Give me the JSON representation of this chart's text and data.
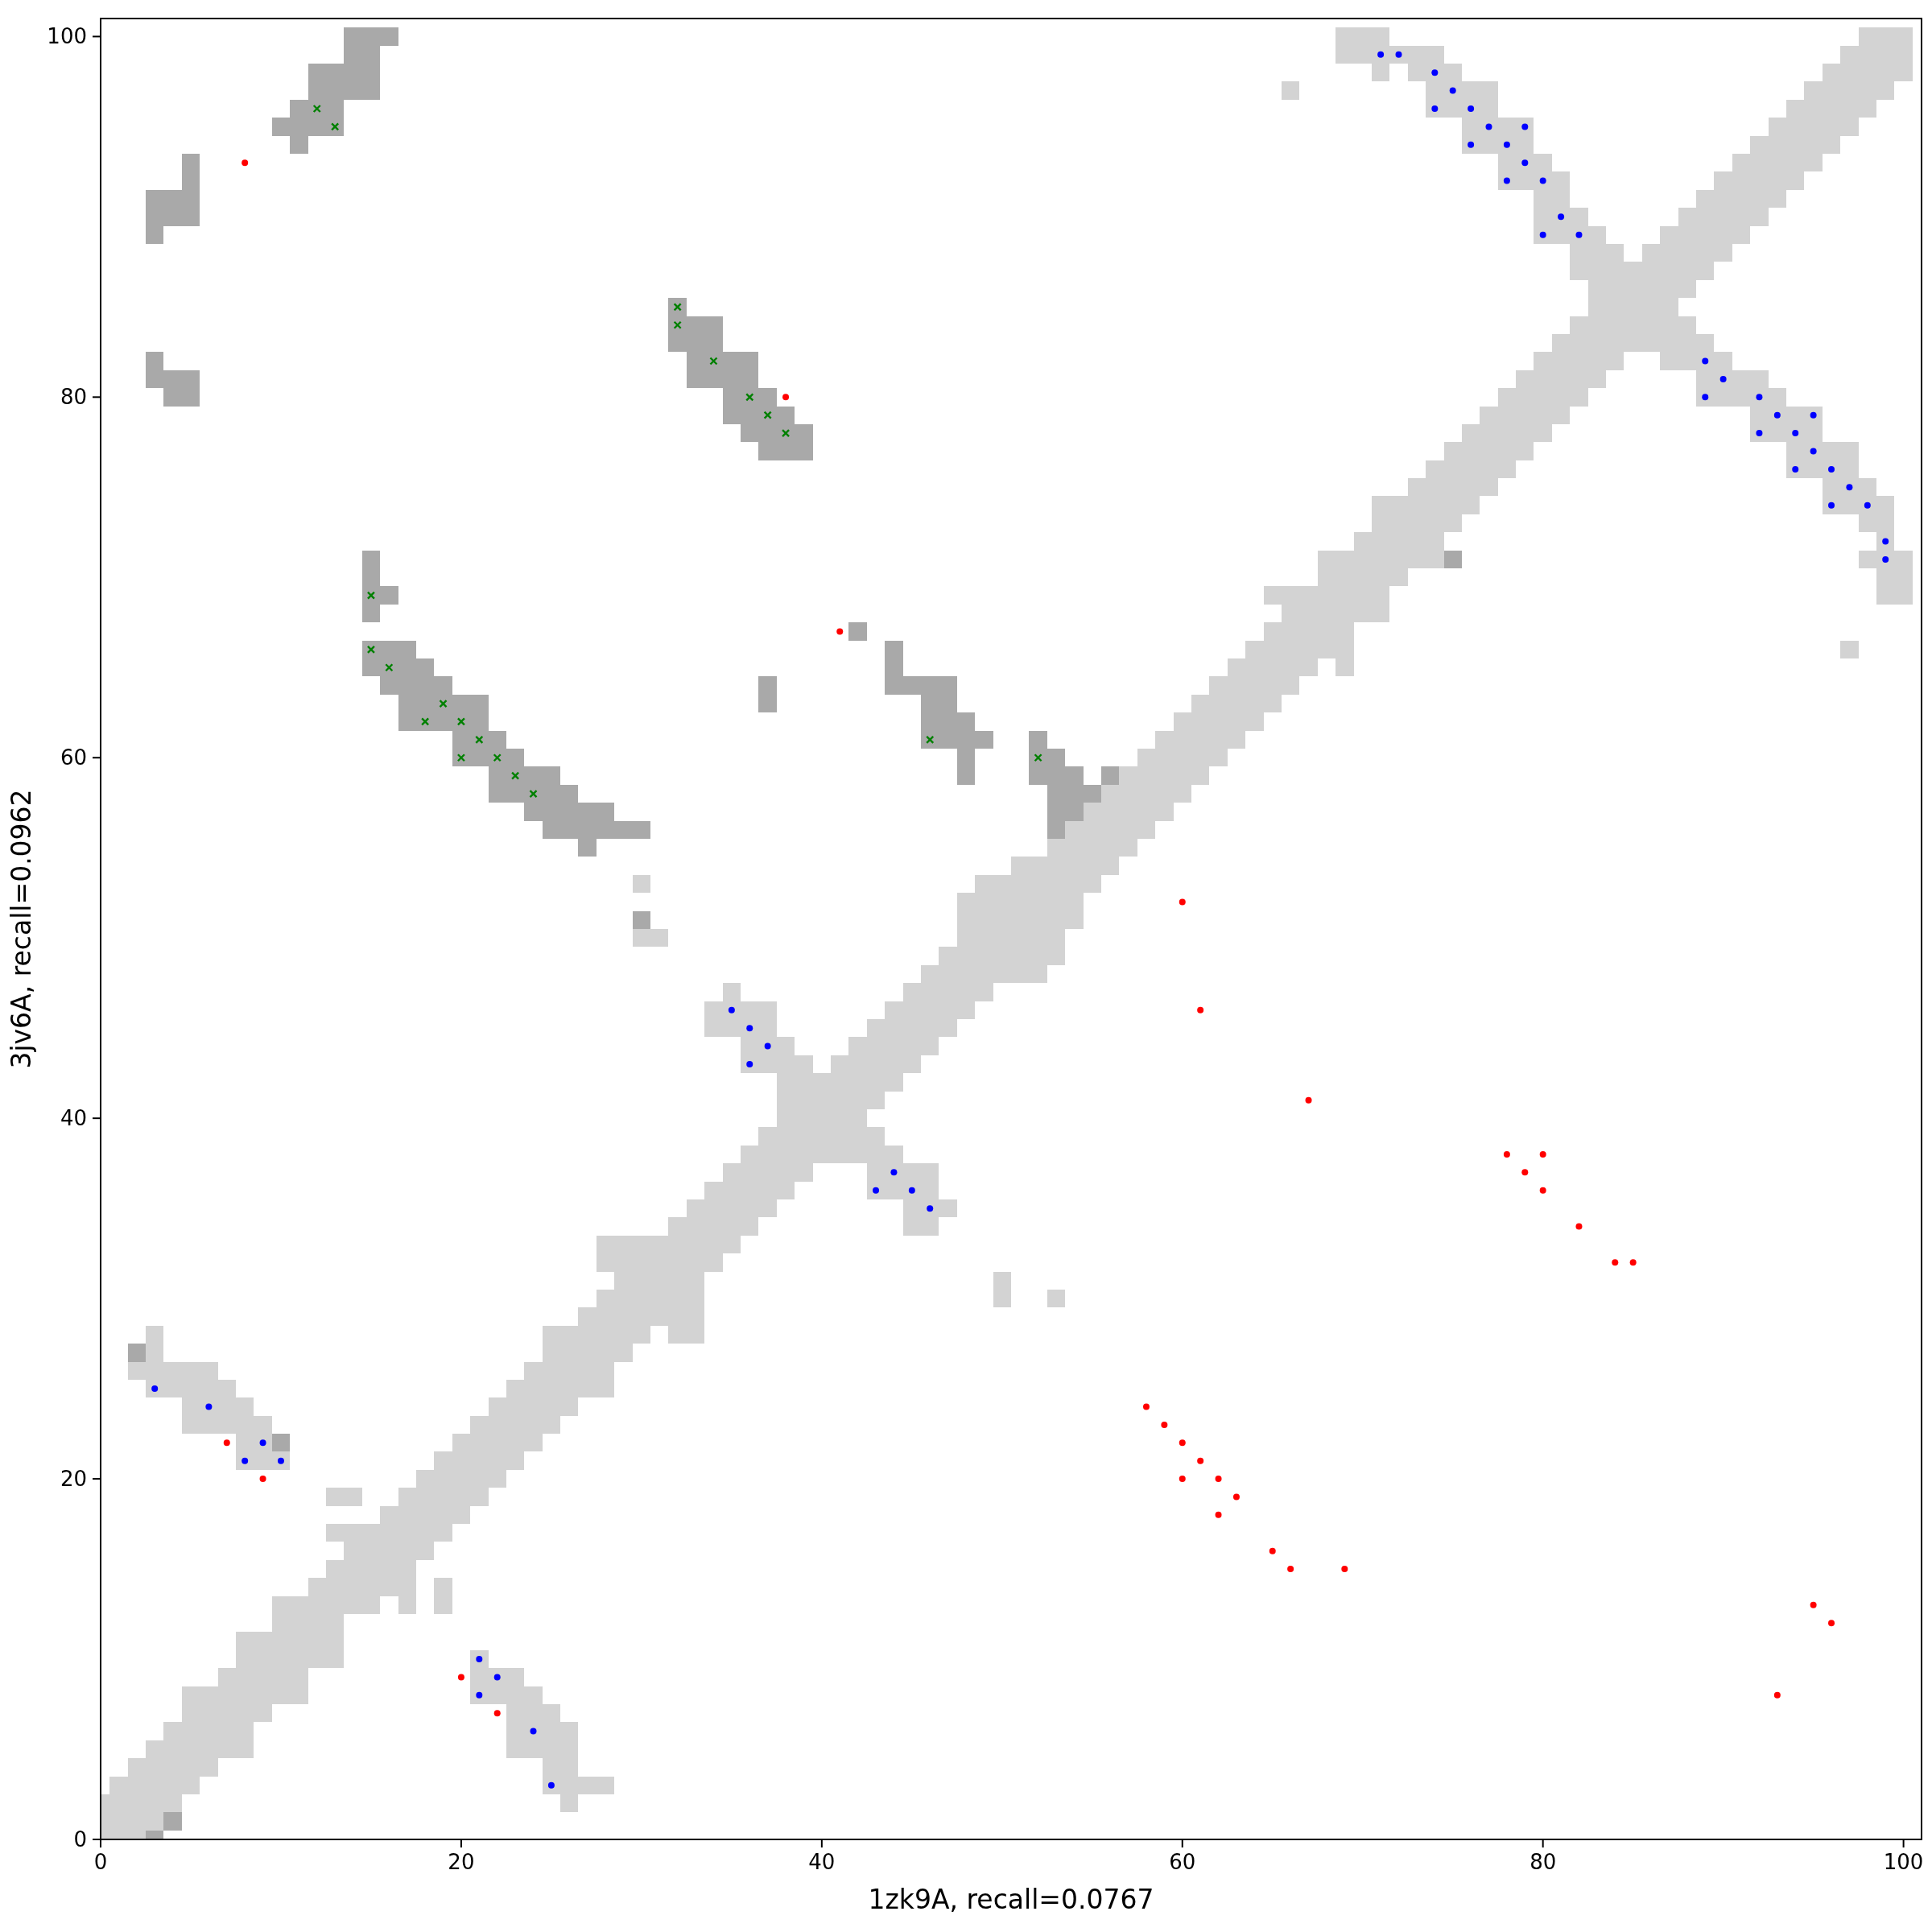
{
  "chart_data": {
    "type": "bar",
    "xlabel": "1zk9A, recall=0.0767",
    "ylabel": "3jv6A, recall=0.0962",
    "xlim": [
      0,
      101
    ],
    "ylim": [
      0,
      101
    ],
    "xticks": [
      0,
      20,
      40,
      60,
      80,
      100
    ],
    "yticks": [
      0,
      20,
      40,
      60,
      80,
      100
    ],
    "series": [
      {
        "color": "#d3d3d3",
        "x": [
          0,
          1,
          2,
          3,
          4,
          5,
          6,
          7,
          8,
          9,
          10,
          11,
          12,
          13,
          14,
          15,
          16,
          17,
          18,
          19,
          20,
          21,
          22,
          23,
          24,
          25,
          26,
          27,
          28,
          29,
          30,
          31,
          32,
          33,
          34,
          35,
          36,
          37,
          38,
          39,
          40,
          41,
          42,
          43,
          44,
          45,
          46,
          47,
          48,
          49,
          50,
          51,
          52,
          53,
          54,
          55,
          56,
          57,
          58,
          59,
          60,
          61,
          62,
          63,
          64,
          65,
          66,
          67,
          68,
          69,
          70,
          71,
          72,
          73,
          74,
          75,
          76,
          77,
          78,
          79,
          80,
          81,
          82,
          83,
          84,
          85,
          86,
          87,
          88,
          89,
          90,
          91,
          92,
          93,
          94,
          95,
          96,
          97,
          98,
          99,
          100
        ],
        "base": [
          0,
          0,
          0,
          0.5,
          1.5,
          2.5,
          3.5,
          4.5,
          4.5,
          6.5,
          7.5,
          7.5,
          9.5,
          9.5,
          12.5,
          12.5,
          13.5,
          12.5,
          15.5,
          12.5,
          17.5,
          7.5,
          7.5,
          4.5,
          4.5,
          2.5,
          1.5,
          2.5,
          2.5,
          26.5,
          27.5,
          28.5,
          27.5,
          27.5,
          31.5,
          32.5,
          33.5,
          34.5,
          35.5,
          36.5,
          37.5,
          37.5,
          37.5,
          35.5,
          35.5,
          33.5,
          33.5,
          34.5,
          45.5,
          46.5,
          29.5,
          47.5,
          47.5,
          29.5,
          50.5,
          52.5,
          53.5,
          54.5,
          55.5,
          56.5,
          57.5,
          58.5,
          59.5,
          60.5,
          61.5,
          62.5,
          63.5,
          64.5,
          65.5,
          64.5,
          67.5,
          67.5,
          69.5,
          70.5,
          70.5,
          72.5,
          73.5,
          74.5,
          75.5,
          76.5,
          77.5,
          78.5,
          79.5,
          80.5,
          81.5,
          82.5,
          82.5,
          81.5,
          81.5,
          79.5,
          79.5,
          79.5,
          77.5,
          77.5,
          75.5,
          75.5,
          73.5,
          65.5,
          70.5,
          68.5,
          68.5
        ],
        "values": [
          2.5,
          3.5,
          4.5,
          5,
          5,
          6,
          5,
          5,
          7,
          5,
          6,
          6,
          5,
          6,
          5,
          5,
          5,
          7,
          5,
          2,
          5,
          3,
          2,
          5,
          4,
          5,
          5,
          1,
          1,
          7,
          6,
          5,
          7,
          8,
          5,
          5,
          5,
          5,
          9,
          7,
          5,
          6,
          7,
          4,
          3,
          4,
          4,
          1,
          7,
          7,
          2,
          7,
          7,
          1,
          6,
          5,
          5,
          5,
          5,
          5,
          5,
          5,
          5,
          5,
          5,
          5,
          6,
          5,
          6,
          7,
          5,
          7,
          5,
          5,
          6,
          5,
          5,
          5,
          5,
          5,
          5,
          5,
          5,
          9,
          7,
          5,
          6,
          8,
          3,
          4,
          3,
          2,
          4,
          3,
          4,
          4,
          4,
          1,
          1,
          6,
          3
        ]
      },
      {
        "color": "#d3d3d3",
        "x": [
          2,
          3,
          4,
          5,
          6,
          7,
          8,
          9,
          10,
          13,
          14,
          19,
          21,
          22,
          23,
          24,
          25,
          26,
          27,
          28,
          30,
          31,
          34,
          35,
          36,
          37,
          43,
          44,
          45,
          46,
          47,
          50,
          53,
          65,
          66,
          69,
          70,
          71,
          72,
          73,
          74,
          75,
          76,
          77,
          78,
          79,
          80,
          81,
          82,
          88,
          89,
          90,
          91,
          92,
          93,
          94,
          95,
          96,
          97,
          98,
          99,
          100
        ],
        "base": [
          25.5,
          24.5,
          24.5,
          22.5,
          22.5,
          22.5,
          20.5,
          20.5,
          20.5,
          16.5,
          18.5,
          16.5,
          18.5,
          19.5,
          20.5,
          21.5,
          22.5,
          23.5,
          24.5,
          24.5,
          49.5,
          49.5,
          44.5,
          44.5,
          42.5,
          42.5,
          40.5,
          41.5,
          42.5,
          43.5,
          44.5,
          47.5,
          48.5,
          68.5,
          96.5,
          98.5,
          98.5,
          97.5,
          98.5,
          97.5,
          95.5,
          95.5,
          93.5,
          93.5,
          91.5,
          91.5,
          88.5,
          88.5,
          86.5,
          85.5,
          86.5,
          87.5,
          88.5,
          89.5,
          90.5,
          91.5,
          92.5,
          93.5,
          73.5,
          72.5,
          96.5,
          97.5
        ],
        "values": [
          1,
          4,
          2,
          4,
          4,
          3,
          4,
          3,
          1,
          1,
          1,
          5,
          5,
          5,
          5,
          5,
          6,
          5,
          5,
          6,
          1,
          1,
          2,
          3,
          4,
          4,
          5,
          5,
          5,
          5,
          5,
          6,
          7,
          1,
          1,
          2,
          2,
          3,
          1,
          2,
          4,
          3,
          4,
          4,
          4,
          4,
          5,
          4,
          4,
          5,
          5,
          5,
          5,
          5,
          5,
          5,
          5,
          5,
          4,
          3,
          4,
          3
        ]
      },
      {
        "color": "#d3d3d3",
        "x": [
          13,
          28,
          30,
          97,
          98
        ],
        "base": [
          18.5,
          31.5,
          52.5,
          94.5,
          95.5
        ],
        "values": [
          1,
          2,
          1,
          5,
          5
        ]
      },
      {
        "color": "#a9a9a9",
        "x": [
          2,
          3,
          4,
          5,
          10,
          11,
          12,
          13,
          14,
          15,
          16,
          17,
          18,
          19,
          20,
          21,
          22,
          23,
          24,
          25,
          26,
          27,
          28,
          29,
          30,
          32,
          33,
          34,
          35,
          36,
          37,
          38,
          39,
          42,
          44,
          45,
          46,
          47,
          48,
          49,
          52,
          53,
          54,
          55,
          56,
          75
        ],
        "base": [
          26.5,
          0,
          0.5,
          79.5,
          21.5,
          93.5,
          94.5,
          94.5,
          96.5,
          64.5,
          63.5,
          61.5,
          61.5,
          61.5,
          59.5,
          59.5,
          57.5,
          57.5,
          56.5,
          55.5,
          55.5,
          54.5,
          55.5,
          55.5,
          50.5,
          82.5,
          80.5,
          80.5,
          78.5,
          77.5,
          62.5,
          76.5,
          76.5,
          66.5,
          63.5,
          63.5,
          60.5,
          60.5,
          58.5,
          60.5,
          58.5,
          55.5,
          56.5,
          57.5,
          58.5,
          70.5
        ],
        "values": [
          1,
          0.5,
          1,
          2,
          1,
          3,
          4,
          4,
          4,
          2,
          3,
          5,
          4,
          3,
          4,
          4,
          4,
          3,
          3,
          4,
          3,
          3,
          2,
          1,
          1,
          3,
          4,
          4,
          4,
          5,
          2,
          3,
          2,
          1,
          3,
          1,
          4,
          4,
          4,
          1,
          3,
          5,
          3,
          1,
          1,
          1
        ]
      },
      {
        "color": "#a9a9a9",
        "x": [
          3,
          4,
          5,
          10,
          15,
          16,
          30,
          37
        ],
        "base": [
          80.5,
          79.5,
          89.5,
          94.5,
          67.5,
          68.5,
          55.5,
          76.5
        ],
        "values": [
          2,
          2,
          4,
          1,
          4,
          1,
          1,
          4
        ]
      },
      {
        "color": "#a9a9a9",
        "x": [
          3,
          4,
          15,
          16
        ],
        "base": [
          88.5,
          89.5,
          96.5,
          99.5
        ],
        "values": [
          3,
          2,
          4,
          1
        ]
      },
      {
        "type": "scatter",
        "color": "#0000ff",
        "marker": "circle",
        "x": [
          3,
          6,
          9,
          8,
          10,
          21,
          22,
          21,
          24,
          25,
          35,
          36,
          37,
          36,
          44,
          43,
          45,
          46,
          71,
          72,
          74,
          75,
          74,
          76,
          77,
          79,
          76,
          78,
          79,
          78,
          80,
          81,
          80,
          82,
          89,
          90,
          89,
          92,
          93,
          95,
          92,
          94,
          95,
          94,
          96,
          97,
          96,
          98,
          99,
          99
        ],
        "values": [
          25,
          24,
          22,
          21,
          21,
          10,
          9,
          8,
          6,
          3,
          46,
          45,
          44,
          43,
          37,
          36,
          36,
          35,
          99,
          99,
          98,
          97,
          96,
          96,
          95,
          95,
          94,
          94,
          93,
          92,
          92,
          90,
          89,
          89,
          82,
          81,
          80,
          80,
          79,
          79,
          78,
          78,
          77,
          76,
          76,
          75,
          74,
          74,
          72,
          71
        ]
      },
      {
        "type": "scatter",
        "color": "#008000",
        "marker": "cross",
        "x": [
          12,
          13,
          15,
          15,
          16,
          19,
          18,
          20,
          21,
          20,
          22,
          23,
          24,
          32,
          32,
          34,
          36,
          37,
          38,
          46,
          52
        ],
        "values": [
          96,
          95,
          69,
          66,
          65,
          63,
          62,
          62,
          61,
          60,
          60,
          59,
          58,
          85,
          84,
          82,
          80,
          79,
          78,
          61,
          60
        ]
      },
      {
        "type": "scatter",
        "color": "#ff0000",
        "marker": "circle",
        "x": [
          8,
          38,
          41,
          60,
          61,
          67,
          78,
          80,
          79,
          80,
          82,
          84,
          85,
          58,
          59,
          60,
          61,
          60,
          62,
          63,
          62,
          65,
          66,
          69,
          95,
          96,
          93,
          7,
          9,
          20,
          22
        ],
        "values": [
          93,
          80,
          67,
          52,
          46,
          41,
          38,
          38,
          37,
          36,
          34,
          32,
          32,
          24,
          23,
          22,
          21,
          20,
          20,
          19,
          18,
          16,
          15,
          15,
          13,
          12,
          8,
          22,
          20,
          9,
          7
        ]
      }
    ]
  }
}
